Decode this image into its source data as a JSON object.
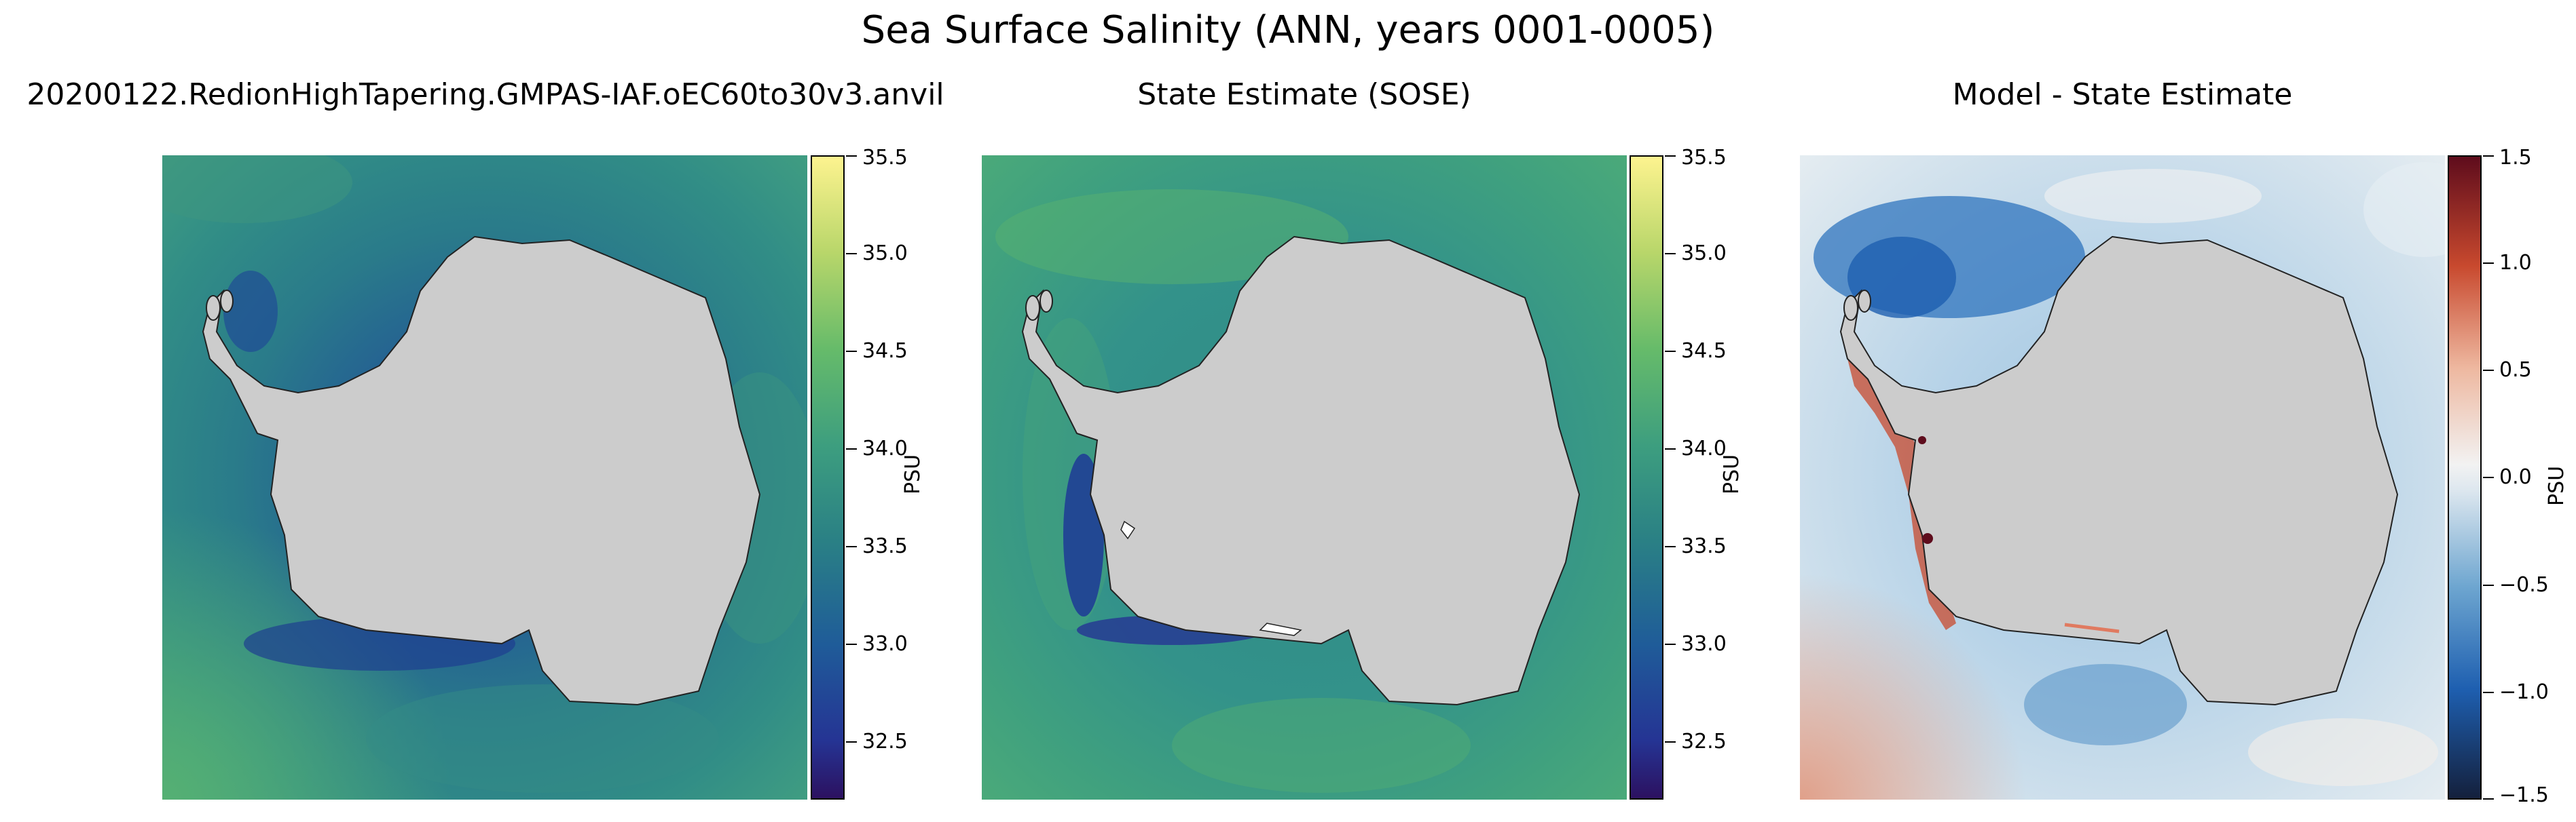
{
  "figure": {
    "title": "Sea Surface Salinity (ANN, years 0001-0005)"
  },
  "panels": [
    {
      "title": "20200122.RedionHighTapering.GMPAS-IAF.oEC60to30v3.anvil",
      "colorbar": {
        "label": "PSU",
        "ticks": [
          "32.5",
          "33.0",
          "33.5",
          "34.0",
          "34.5",
          "35.0",
          "35.5"
        ]
      }
    },
    {
      "title": "State Estimate (SOSE)",
      "colorbar": {
        "label": "PSU",
        "ticks": [
          "32.5",
          "33.0",
          "33.5",
          "34.0",
          "34.5",
          "35.0",
          "35.5"
        ]
      }
    },
    {
      "title": "Model - State Estimate",
      "colorbar": {
        "label": "PSU",
        "ticks": [
          "−1.5",
          "−1.0",
          "−0.5",
          "0.0",
          "0.5",
          "1.0",
          "1.5"
        ]
      }
    }
  ],
  "chart_data": [
    {
      "type": "heatmap",
      "title": "20200122.RedionHighTapering.GMPAS-IAF.oEC60to30v3.anvil",
      "variable": "Sea Surface Salinity",
      "units": "PSU",
      "colorbar_range": [
        32.2,
        35.5
      ],
      "colorbar_ticks": [
        32.5,
        33.0,
        33.5,
        34.0,
        34.5,
        35.0,
        35.5
      ],
      "colormap": [
        "#2c1160",
        "#253494",
        "#1f5c99",
        "#2a8085",
        "#3d9e7f",
        "#66bb6a",
        "#b8d66a",
        "#fdf38f"
      ]
    },
    {
      "type": "heatmap",
      "title": "State Estimate (SOSE)",
      "variable": "Sea Surface Salinity",
      "units": "PSU",
      "colorbar_range": [
        32.2,
        35.5
      ],
      "colorbar_ticks": [
        32.5,
        33.0,
        33.5,
        34.0,
        34.5,
        35.0,
        35.5
      ],
      "colormap": [
        "#2c1160",
        "#253494",
        "#1f5c99",
        "#2a8085",
        "#3d9e7f",
        "#66bb6a",
        "#b8d66a",
        "#fdf38f"
      ]
    },
    {
      "type": "heatmap",
      "title": "Model - State Estimate",
      "variable": "Sea Surface Salinity difference",
      "units": "PSU",
      "colorbar_range": [
        -1.5,
        1.5
      ],
      "colorbar_ticks": [
        -1.5,
        -1.0,
        -0.5,
        0.0,
        0.5,
        1.0,
        1.5
      ],
      "colormap": [
        "#14203c",
        "#1e5fb0",
        "#6ea6d0",
        "#cfe0ec",
        "#f2f2f2",
        "#eeb8a0",
        "#c8492e",
        "#5e0c1c"
      ]
    }
  ],
  "colors": {
    "land": "#cccccc",
    "coast": "#222222"
  }
}
